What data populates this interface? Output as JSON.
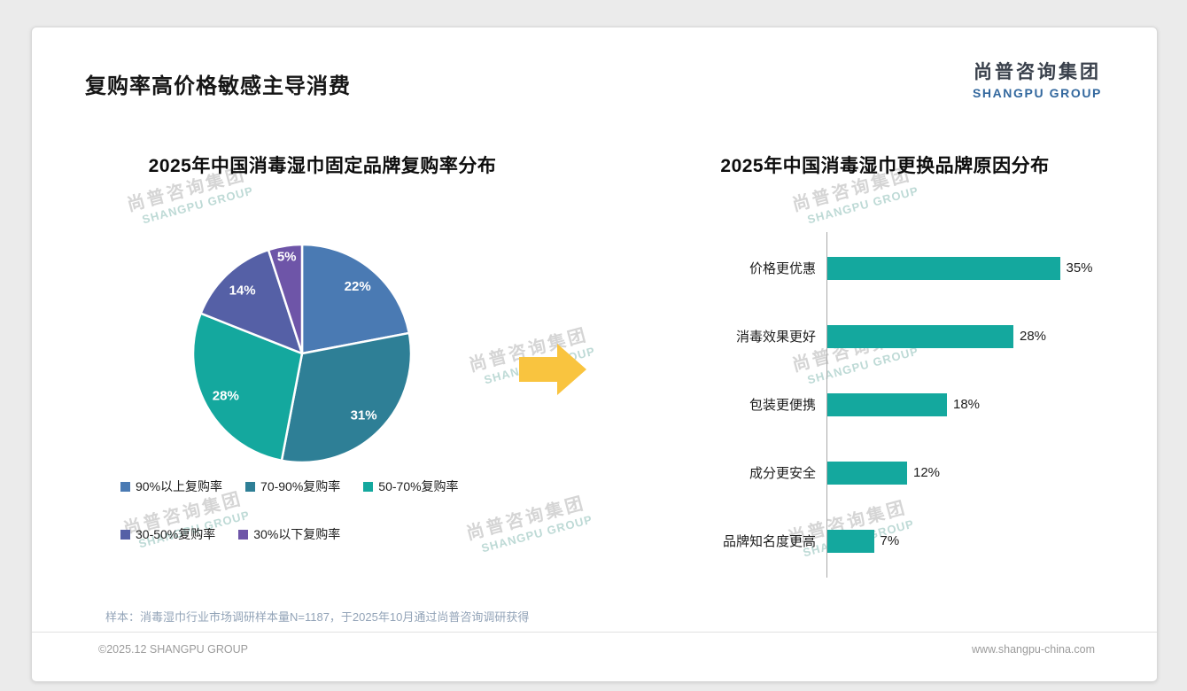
{
  "page": {
    "title": "复购率高价格敏感主导消费",
    "logo_cn": "尚普咨询集团",
    "logo_en": "SHANGPU GROUP",
    "watermark_cn": "尚普咨询集团",
    "watermark_en": "SHANGPU GROUP",
    "sample_note": "样本：消毒湿巾行业市场调研样本量N=1187，于2025年10月通过尚普咨询调研获得",
    "copyright": "©2025.12 SHANGPU GROUP",
    "website": "www.shangpu-china.com",
    "arrow_color": "#f9c43f"
  },
  "chart_data": [
    {
      "type": "pie",
      "title": "2025年中国消毒湿巾固定品牌复购率分布",
      "labels": [
        "90%以上复购率",
        "70-90%复购率",
        "50-70%复购率",
        "30-50%复购率",
        "30%以下复购率"
      ],
      "values": [
        22,
        31,
        28,
        14,
        5
      ],
      "data_labels": [
        "22%",
        "31%",
        "28%",
        "14%",
        "5%"
      ],
      "colors": [
        "#4a7ab3",
        "#2e7f96",
        "#14a89e",
        "#5560a6",
        "#6e55a8"
      ],
      "start_angle": "top",
      "direction": "clockwise",
      "legend_position": "bottom"
    },
    {
      "type": "bar",
      "orientation": "horizontal",
      "title": "2025年中国消毒湿巾更换品牌原因分布",
      "categories": [
        "价格更优惠",
        "消毒效果更好",
        "包装更便携",
        "成分更安全",
        "品牌知名度更高"
      ],
      "values": [
        35,
        28,
        18,
        12,
        7
      ],
      "value_labels": [
        "35%",
        "28%",
        "18%",
        "12%",
        "7%"
      ],
      "bar_color": "#14a89e",
      "xlim": [
        0,
        40
      ],
      "grid": false,
      "legend_position": "none"
    }
  ]
}
